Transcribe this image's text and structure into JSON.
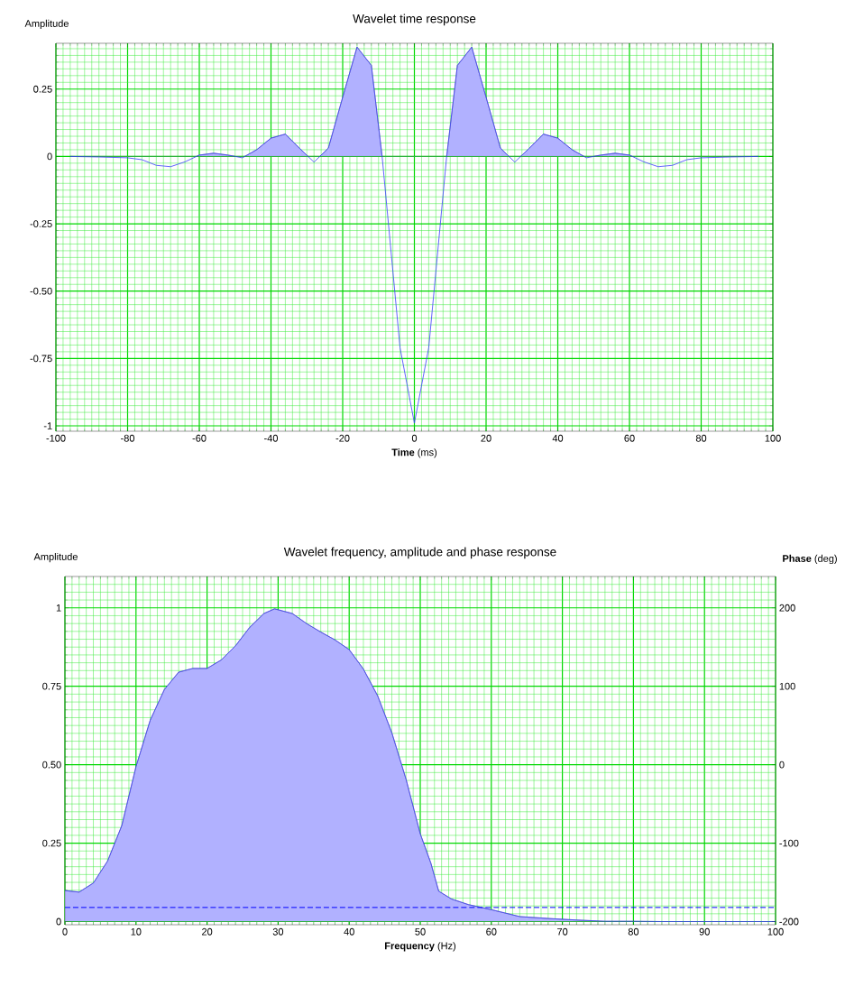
{
  "chart_data": [
    {
      "type": "area",
      "title": "Wavelet time response",
      "ylabel": "Amplitude",
      "xlabel": "**Time** (ms)",
      "xlim": [
        -100,
        100
      ],
      "ylim": [
        -1.02,
        0.42
      ],
      "grid": true,
      "xticks": [
        -100,
        -80,
        -60,
        -40,
        -20,
        0,
        20,
        40,
        60,
        80,
        100,
        {
          "value": -98,
          "label": null
        },
        {
          "value": -96,
          "label": null
        },
        {
          "value": -94,
          "label": null
        },
        {
          "value": -92,
          "label": null
        },
        {
          "value": -90,
          "label": null
        },
        {
          "value": -88,
          "label": null
        },
        {
          "value": -86,
          "label": null
        },
        {
          "value": -84,
          "label": null
        },
        {
          "value": -82,
          "label": null
        },
        {
          "value": -78,
          "label": null
        },
        {
          "value": -76,
          "label": null
        },
        {
          "value": -74,
          "label": null
        },
        {
          "value": -72,
          "label": null
        },
        {
          "value": -70,
          "label": null
        },
        {
          "value": -68,
          "label": null
        },
        {
          "value": -66,
          "label": null
        },
        {
          "value": -64,
          "label": null
        },
        {
          "value": -62,
          "label": null
        },
        {
          "value": -58,
          "label": null
        },
        {
          "value": -56,
          "label": null
        },
        {
          "value": -54,
          "label": null
        },
        {
          "value": -52,
          "label": null
        },
        {
          "value": -50,
          "label": null
        },
        {
          "value": -48,
          "label": null
        },
        {
          "value": -46,
          "label": null
        },
        {
          "value": -44,
          "label": null
        },
        {
          "value": -42,
          "label": null
        },
        {
          "value": -38,
          "label": null
        },
        {
          "value": -36,
          "label": null
        },
        {
          "value": -34,
          "label": null
        },
        {
          "value": -32,
          "label": null
        },
        {
          "value": -30,
          "label": null
        },
        {
          "value": -28,
          "label": null
        },
        {
          "value": -26,
          "label": null
        },
        {
          "value": -24,
          "label": null
        },
        {
          "value": -22,
          "label": null
        },
        {
          "value": -18,
          "label": null
        },
        {
          "value": -16,
          "label": null
        },
        {
          "value": -14,
          "label": null
        },
        {
          "value": -12,
          "label": null
        },
        {
          "value": -10,
          "label": null
        },
        {
          "value": -8,
          "label": null
        },
        {
          "value": -6,
          "label": null
        },
        {
          "value": -4,
          "label": null
        },
        {
          "value": -2,
          "label": null
        },
        {
          "value": 2,
          "label": null
        },
        {
          "value": 4,
          "label": null
        },
        {
          "value": 6,
          "label": null
        },
        {
          "value": 8,
          "label": null
        },
        {
          "value": 10,
          "label": null
        },
        {
          "value": 12,
          "label": null
        },
        {
          "value": 14,
          "label": null
        },
        {
          "value": 16,
          "label": null
        },
        {
          "value": 18,
          "label": null
        },
        {
          "value": 22,
          "label": null
        },
        {
          "value": 24,
          "label": null
        },
        {
          "value": 26,
          "label": null
        },
        {
          "value": 28,
          "label": null
        },
        {
          "value": 30,
          "label": null
        },
        {
          "value": 32,
          "label": null
        },
        {
          "value": 34,
          "label": null
        },
        {
          "value": 36,
          "label": null
        },
        {
          "value": 38,
          "label": null
        },
        {
          "value": 42,
          "label": null
        },
        {
          "value": 44,
          "label": null
        },
        {
          "value": 46,
          "label": null
        },
        {
          "value": 48,
          "label": null
        },
        {
          "value": 50,
          "label": null
        },
        {
          "value": 52,
          "label": null
        },
        {
          "value": 54,
          "label": null
        },
        {
          "value": 56,
          "label": null
        },
        {
          "value": 58,
          "label": null
        },
        {
          "value": 62,
          "label": null
        },
        {
          "value": 64,
          "label": null
        },
        {
          "value": 66,
          "label": null
        },
        {
          "value": 68,
          "label": null
        },
        {
          "value": 70,
          "label": null
        },
        {
          "value": 72,
          "label": null
        },
        {
          "value": 74,
          "label": null
        },
        {
          "value": 76,
          "label": null
        },
        {
          "value": 78,
          "label": null
        },
        {
          "value": 82,
          "label": null
        },
        {
          "value": 84,
          "label": null
        },
        {
          "value": 86,
          "label": null
        },
        {
          "value": 88,
          "label": null
        },
        {
          "value": 90,
          "label": null
        },
        {
          "value": 92,
          "label": null
        },
        {
          "value": 94,
          "label": null
        },
        {
          "value": 96,
          "label": null
        },
        {
          "value": 98,
          "label": null
        }
      ],
      "yticks": [
        {
          "value": -1,
          "label": "-1"
        },
        {
          "value": -0.75,
          "label": "-0.75"
        },
        {
          "value": -0.5,
          "label": "-0.50"
        },
        {
          "value": -0.25,
          "label": "-0.25"
        },
        0,
        0.25,
        {
          "value": -0.975,
          "label": null
        },
        {
          "value": -0.95,
          "label": null
        },
        {
          "value": -0.925,
          "label": null
        },
        {
          "value": -0.9,
          "label": null
        },
        {
          "value": -0.875,
          "label": null
        },
        {
          "value": -0.85,
          "label": null
        },
        {
          "value": -0.825,
          "label": null
        },
        {
          "value": -0.8,
          "label": null
        },
        {
          "value": -0.775,
          "label": null
        },
        {
          "value": -0.725,
          "label": null
        },
        {
          "value": -0.7,
          "label": null
        },
        {
          "value": -0.675,
          "label": null
        },
        {
          "value": -0.65,
          "label": null
        },
        {
          "value": -0.625,
          "label": null
        },
        {
          "value": -0.6,
          "label": null
        },
        {
          "value": -0.575,
          "label": null
        },
        {
          "value": -0.55,
          "label": null
        },
        {
          "value": -0.525,
          "label": null
        },
        {
          "value": -0.475,
          "label": null
        },
        {
          "value": -0.45,
          "label": null
        },
        {
          "value": -0.425,
          "label": null
        },
        {
          "value": -0.4,
          "label": null
        },
        {
          "value": -0.375,
          "label": null
        },
        {
          "value": -0.35,
          "label": null
        },
        {
          "value": -0.325,
          "label": null
        },
        {
          "value": -0.3,
          "label": null
        },
        {
          "value": -0.275,
          "label": null
        },
        {
          "value": -0.225,
          "label": null
        },
        {
          "value": -0.2,
          "label": null
        },
        {
          "value": -0.175,
          "label": null
        },
        {
          "value": -0.15,
          "label": null
        },
        {
          "value": -0.125,
          "label": null
        },
        {
          "value": -0.1,
          "label": null
        },
        {
          "value": -0.075,
          "label": null
        },
        {
          "value": -0.05,
          "label": null
        },
        {
          "value": -0.025,
          "label": null
        },
        {
          "value": 0.025,
          "label": null
        },
        {
          "value": 0.05,
          "label": null
        },
        {
          "value": 0.075,
          "label": null
        },
        {
          "value": 0.1,
          "label": null
        },
        {
          "value": 0.125,
          "label": null
        },
        {
          "value": 0.15,
          "label": null
        },
        {
          "value": 0.175,
          "label": null
        },
        {
          "value": 0.2,
          "label": null
        },
        {
          "value": 0.225,
          "label": null
        },
        {
          "value": 0.275,
          "label": null
        },
        {
          "value": 0.3,
          "label": null
        },
        {
          "value": 0.325,
          "label": null
        },
        {
          "value": 0.35,
          "label": null
        },
        {
          "value": 0.375,
          "label": null
        },
        {
          "value": 0.4,
          "label": null
        }
      ],
      "series": [
        {
          "color": "#3c3cff",
          "x": [
            -96,
            -88,
            -80,
            -76,
            -72,
            -68,
            -64,
            -60,
            -56,
            -52,
            -48,
            -44,
            -40,
            -36,
            -32,
            -28,
            -24,
            -20,
            -16,
            -12,
            -9,
            -4,
            0,
            4,
            9,
            12,
            16,
            20,
            24,
            28,
            32,
            36,
            40,
            44,
            48,
            52,
            56,
            60,
            64,
            68,
            72,
            76,
            80,
            88,
            96
          ],
          "values": [
            0,
            -0.002,
            -0.005,
            -0.012,
            -0.033,
            -0.038,
            -0.02,
            0.005,
            0.012,
            0.005,
            -0.005,
            0.025,
            0.068,
            0.083,
            0.03,
            -0.021,
            0.031,
            0.22,
            0.406,
            0.338,
            0,
            -0.71,
            -0.99,
            -0.71,
            0,
            0.338,
            0.406,
            0.22,
            0.031,
            -0.021,
            0.03,
            0.083,
            0.068,
            0.025,
            -0.005,
            0.005,
            0.012,
            0.005,
            -0.02,
            -0.038,
            -0.033,
            -0.012,
            -0.005,
            -0.002,
            0
          ]
        }
      ]
    },
    {
      "type": "area",
      "title": "Wavelet frequency, amplitude and phase response",
      "ylabel": "Amplitude",
      "y2label": "**Phase** (deg)",
      "xlabel": "**Frequency** (Hz)",
      "xlim": [
        0,
        100
      ],
      "ylim": [
        -0.01,
        1.1
      ],
      "y2lim": [
        -204,
        240
      ],
      "y2ticks": [
        -200,
        -100,
        0,
        100,
        200
      ],
      "grid": true,
      "xticks": [
        0,
        10,
        20,
        30,
        40,
        50,
        60,
        70,
        80,
        90,
        100,
        {
          "value": 1,
          "label": null
        },
        {
          "value": 2,
          "label": null
        },
        {
          "value": 3,
          "label": null
        },
        {
          "value": 4,
          "label": null
        },
        {
          "value": 5,
          "label": null
        },
        {
          "value": 6,
          "label": null
        },
        {
          "value": 7,
          "label": null
        },
        {
          "value": 8,
          "label": null
        },
        {
          "value": 9,
          "label": null
        },
        {
          "value": 11,
          "label": null
        },
        {
          "value": 12,
          "label": null
        },
        {
          "value": 13,
          "label": null
        },
        {
          "value": 14,
          "label": null
        },
        {
          "value": 15,
          "label": null
        },
        {
          "value": 16,
          "label": null
        },
        {
          "value": 17,
          "label": null
        },
        {
          "value": 18,
          "label": null
        },
        {
          "value": 19,
          "label": null
        },
        {
          "value": 21,
          "label": null
        },
        {
          "value": 22,
          "label": null
        },
        {
          "value": 23,
          "label": null
        },
        {
          "value": 24,
          "label": null
        },
        {
          "value": 25,
          "label": null
        },
        {
          "value": 26,
          "label": null
        },
        {
          "value": 27,
          "label": null
        },
        {
          "value": 28,
          "label": null
        },
        {
          "value": 29,
          "label": null
        },
        {
          "value": 31,
          "label": null
        },
        {
          "value": 32,
          "label": null
        },
        {
          "value": 33,
          "label": null
        },
        {
          "value": 34,
          "label": null
        },
        {
          "value": 35,
          "label": null
        },
        {
          "value": 36,
          "label": null
        },
        {
          "value": 37,
          "label": null
        },
        {
          "value": 38,
          "label": null
        },
        {
          "value": 39,
          "label": null
        },
        {
          "value": 41,
          "label": null
        },
        {
          "value": 42,
          "label": null
        },
        {
          "value": 43,
          "label": null
        },
        {
          "value": 44,
          "label": null
        },
        {
          "value": 45,
          "label": null
        },
        {
          "value": 46,
          "label": null
        },
        {
          "value": 47,
          "label": null
        },
        {
          "value": 48,
          "label": null
        },
        {
          "value": 49,
          "label": null
        },
        {
          "value": 51,
          "label": null
        },
        {
          "value": 52,
          "label": null
        },
        {
          "value": 53,
          "label": null
        },
        {
          "value": 54,
          "label": null
        },
        {
          "value": 55,
          "label": null
        },
        {
          "value": 56,
          "label": null
        },
        {
          "value": 57,
          "label": null
        },
        {
          "value": 58,
          "label": null
        },
        {
          "value": 59,
          "label": null
        },
        {
          "value": 61,
          "label": null
        },
        {
          "value": 62,
          "label": null
        },
        {
          "value": 63,
          "label": null
        },
        {
          "value": 64,
          "label": null
        },
        {
          "value": 65,
          "label": null
        },
        {
          "value": 66,
          "label": null
        },
        {
          "value": 67,
          "label": null
        },
        {
          "value": 68,
          "label": null
        },
        {
          "value": 69,
          "label": null
        },
        {
          "value": 71,
          "label": null
        },
        {
          "value": 72,
          "label": null
        },
        {
          "value": 73,
          "label": null
        },
        {
          "value": 74,
          "label": null
        },
        {
          "value": 75,
          "label": null
        },
        {
          "value": 76,
          "label": null
        },
        {
          "value": 77,
          "label": null
        },
        {
          "value": 78,
          "label": null
        },
        {
          "value": 79,
          "label": null
        },
        {
          "value": 81,
          "label": null
        },
        {
          "value": 82,
          "label": null
        },
        {
          "value": 83,
          "label": null
        },
        {
          "value": 84,
          "label": null
        },
        {
          "value": 85,
          "label": null
        },
        {
          "value": 86,
          "label": null
        },
        {
          "value": 87,
          "label": null
        },
        {
          "value": 88,
          "label": null
        },
        {
          "value": 89,
          "label": null
        },
        {
          "value": 91,
          "label": null
        },
        {
          "value": 92,
          "label": null
        },
        {
          "value": 93,
          "label": null
        },
        {
          "value": 94,
          "label": null
        },
        {
          "value": 95,
          "label": null
        },
        {
          "value": 96,
          "label": null
        },
        {
          "value": 97,
          "label": null
        },
        {
          "value": 98,
          "label": null
        },
        {
          "value": 99,
          "label": null
        }
      ],
      "yticks": [
        0,
        0.25,
        {
          "value": 0.5,
          "label": "0.50"
        },
        0.75,
        1,
        {
          "value": 0.025,
          "label": null
        },
        {
          "value": 0.05,
          "label": null
        },
        {
          "value": 0.075,
          "label": null
        },
        {
          "value": 0.1,
          "label": null
        },
        {
          "value": 0.125,
          "label": null
        },
        {
          "value": 0.15,
          "label": null
        },
        {
          "value": 0.175,
          "label": null
        },
        {
          "value": 0.2,
          "label": null
        },
        {
          "value": 0.225,
          "label": null
        },
        {
          "value": 0.275,
          "label": null
        },
        {
          "value": 0.3,
          "label": null
        },
        {
          "value": 0.325,
          "label": null
        },
        {
          "value": 0.35,
          "label": null
        },
        {
          "value": 0.375,
          "label": null
        },
        {
          "value": 0.4,
          "label": null
        },
        {
          "value": 0.425,
          "label": null
        },
        {
          "value": 0.45,
          "label": null
        },
        {
          "value": 0.475,
          "label": null
        },
        {
          "value": 0.525,
          "label": null
        },
        {
          "value": 0.55,
          "label": null
        },
        {
          "value": 0.575,
          "label": null
        },
        {
          "value": 0.6,
          "label": null
        },
        {
          "value": 0.625,
          "label": null
        },
        {
          "value": 0.65,
          "label": null
        },
        {
          "value": 0.675,
          "label": null
        },
        {
          "value": 0.7,
          "label": null
        },
        {
          "value": 0.725,
          "label": null
        },
        {
          "value": 0.775,
          "label": null
        },
        {
          "value": 0.8,
          "label": null
        },
        {
          "value": 0.825,
          "label": null
        },
        {
          "value": 0.85,
          "label": null
        },
        {
          "value": 0.875,
          "label": null
        },
        {
          "value": 0.9,
          "label": null
        },
        {
          "value": 0.925,
          "label": null
        },
        {
          "value": 0.95,
          "label": null
        },
        {
          "value": 0.975,
          "label": null
        },
        {
          "value": 1.025,
          "label": null
        },
        {
          "value": 1.05,
          "label": null
        },
        {
          "value": 1.075,
          "label": null
        }
      ],
      "series": [
        {
          "color": "#3c3cff",
          "x": [
            0,
            2,
            4,
            6,
            8,
            10,
            12,
            14,
            16,
            18,
            20,
            22,
            24,
            26,
            28,
            29.5,
            32,
            34,
            36,
            38,
            40,
            42,
            44,
            46,
            48,
            50,
            51.5,
            52.6,
            54.4,
            56.8,
            60,
            64,
            68,
            72,
            76,
            80,
            84,
            100
          ],
          "values": [
            0.099,
            0.094,
            0.123,
            0.193,
            0.306,
            0.494,
            0.642,
            0.74,
            0.795,
            0.807,
            0.807,
            0.834,
            0.879,
            0.938,
            0.982,
            0.997,
            0.982,
            0.95,
            0.923,
            0.898,
            0.867,
            0.805,
            0.72,
            0.602,
            0.454,
            0.28,
            0.186,
            0.097,
            0.072,
            0.054,
            0.038,
            0.016,
            0.01,
            0.005,
            0.001,
            0.001,
            0,
            0
          ]
        },
        {
          "type": "line",
          "axis": "y2",
          "line_style": "dashed",
          "color": "#0000ff",
          "x": [
            0,
            100
          ],
          "values": [
            -182,
            -182
          ]
        }
      ]
    }
  ]
}
